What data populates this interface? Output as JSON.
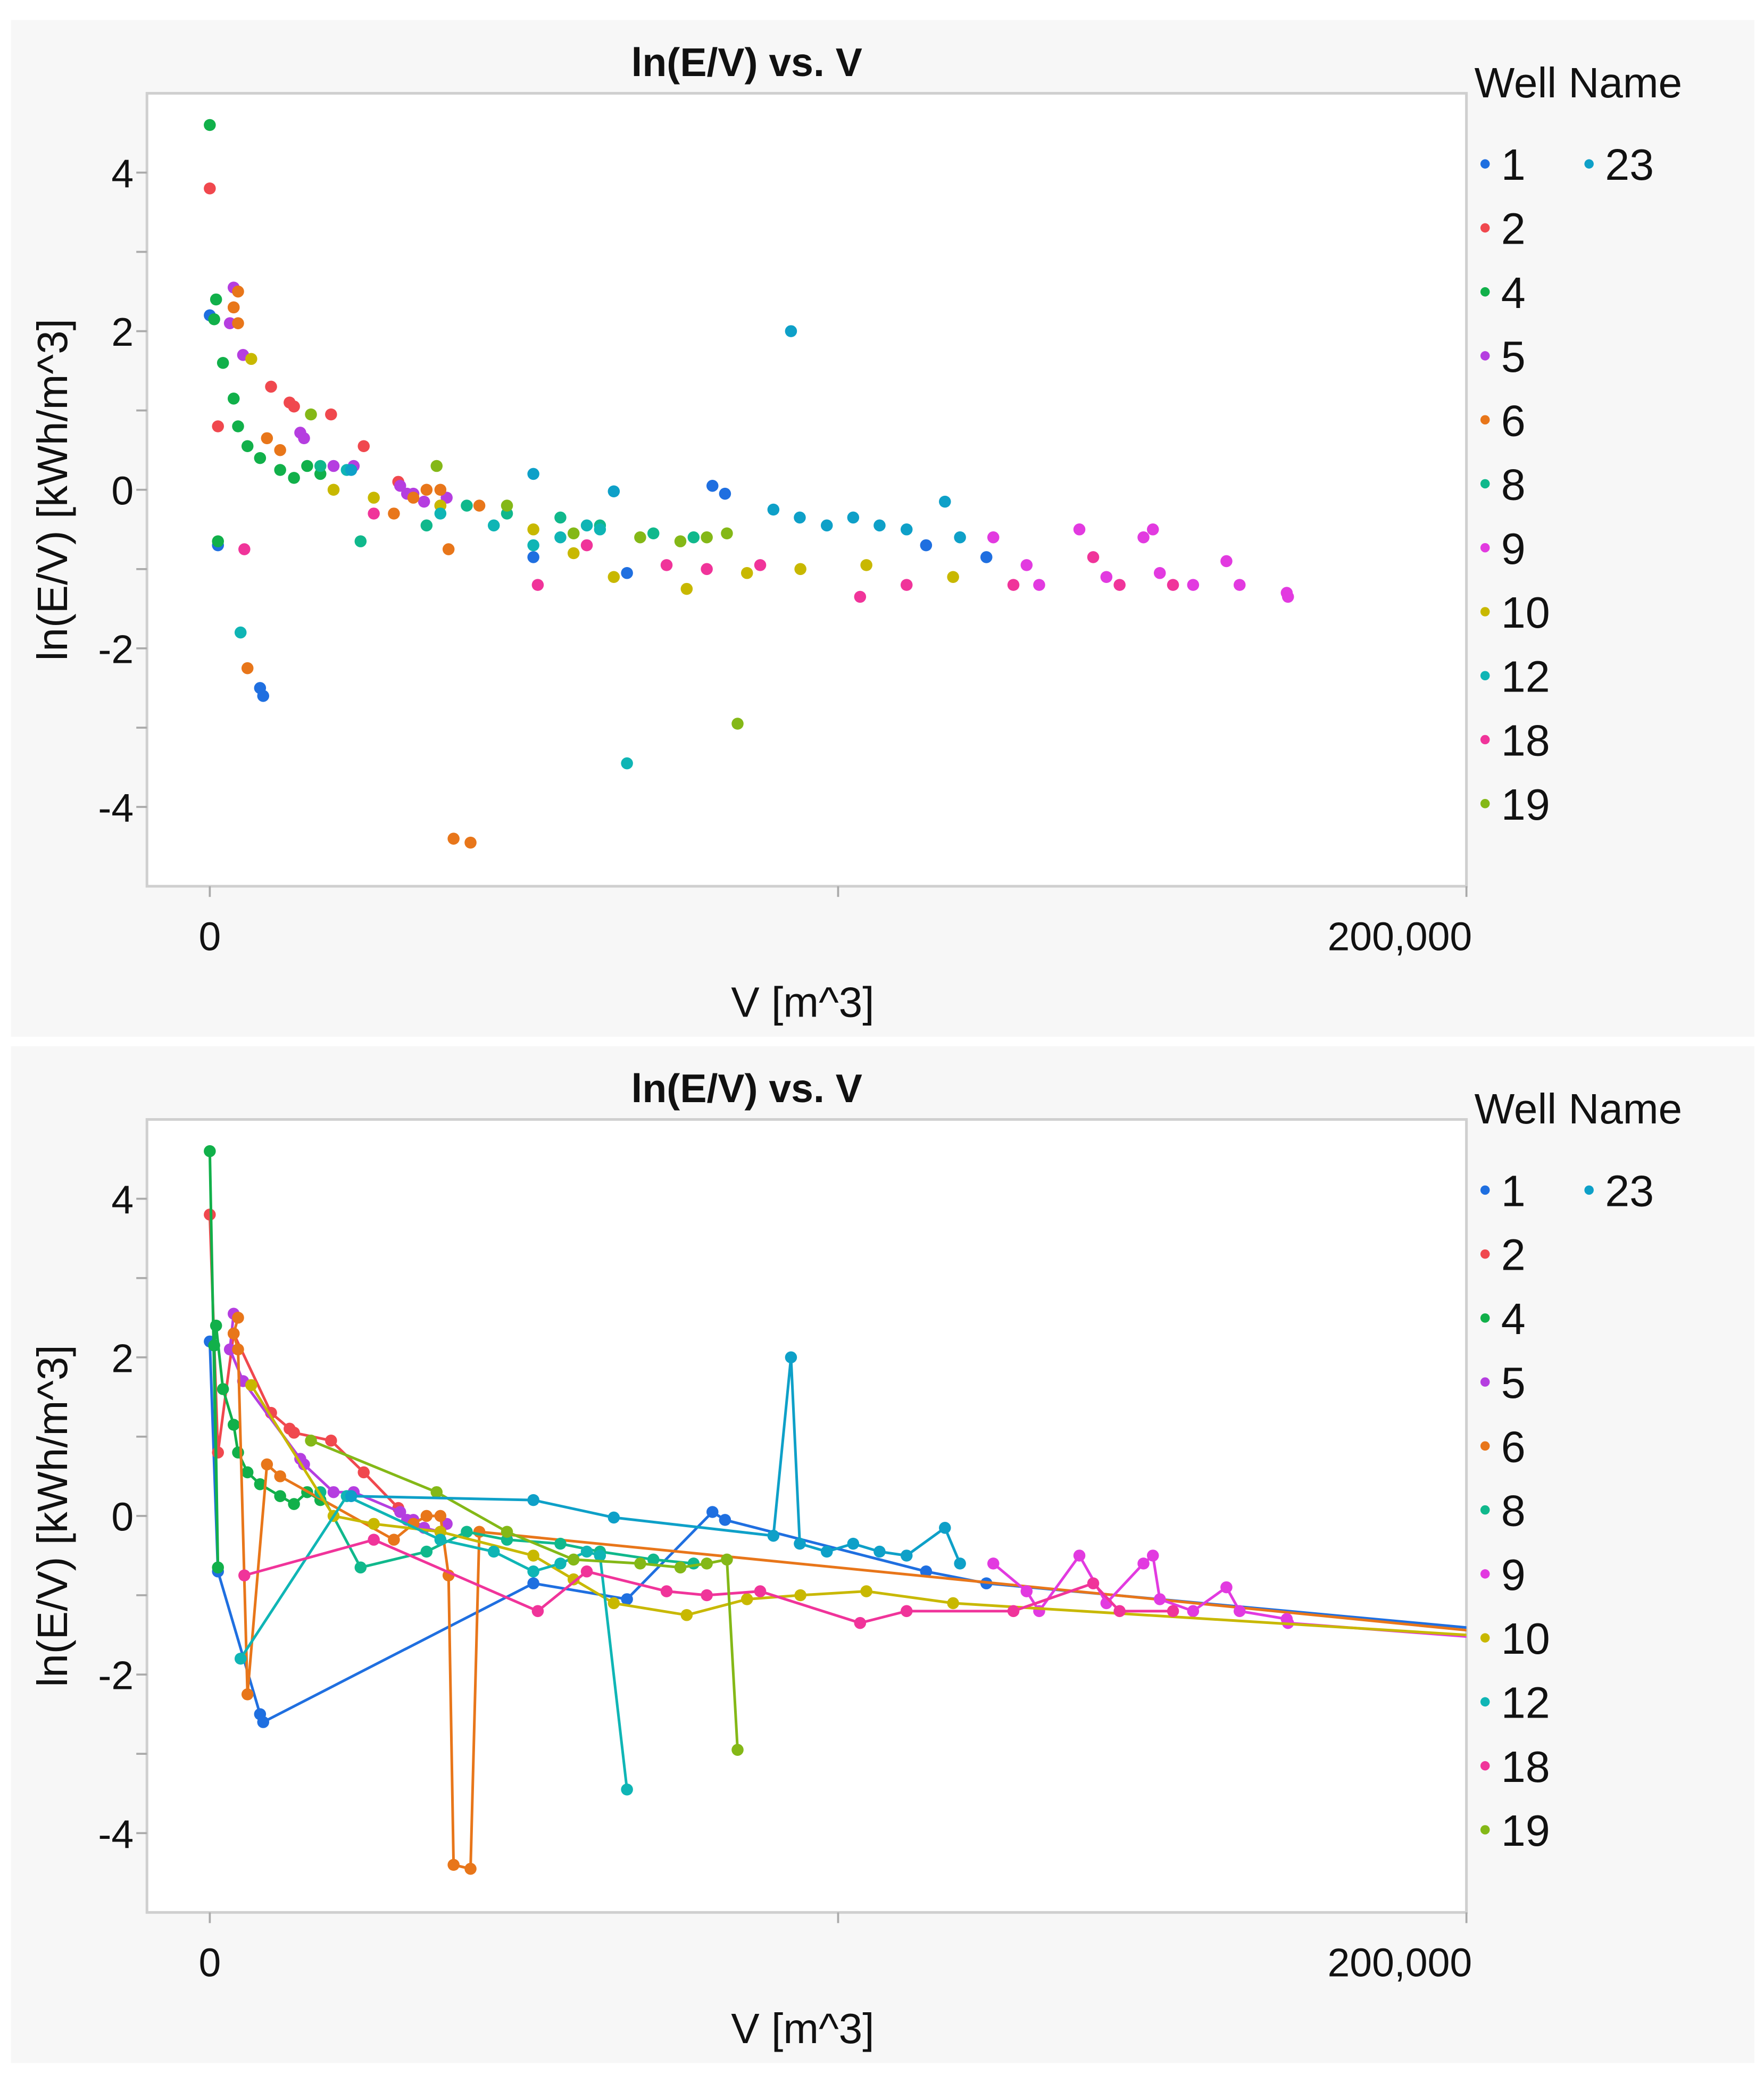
{
  "chart_data": [
    {
      "type": "scatter",
      "title": "ln(E/V) vs. V",
      "xlabel": "V [m^3]",
      "ylabel": "ln(E/V) [kWh/m^3]",
      "xlim": [
        -10000,
        200000
      ],
      "ylim": [
        -5,
        5
      ],
      "x_ticks": [
        {
          "value": 0,
          "label": "0"
        },
        {
          "value": 100000,
          "label": ""
        },
        {
          "value": 200000,
          "label": "200,000"
        }
      ],
      "y_ticks": [
        {
          "value": 4,
          "label": "4"
        },
        {
          "value": 3,
          "label": ""
        },
        {
          "value": 2,
          "label": "2"
        },
        {
          "value": 1,
          "label": ""
        },
        {
          "value": 0,
          "label": "0"
        },
        {
          "value": -1,
          "label": ""
        },
        {
          "value": -2,
          "label": "-2"
        },
        {
          "value": -3,
          "label": ""
        },
        {
          "value": -4,
          "label": "-4"
        }
      ],
      "connect_points": false,
      "legend": {
        "title": "Well Name",
        "placement": "right"
      }
    },
    {
      "type": "line",
      "title": "ln(E/V) vs. V",
      "xlabel": "V [m^3]",
      "ylabel": "ln(E/V) [kWh/m^3]",
      "xlim": [
        -10000,
        200000
      ],
      "ylim": [
        -5,
        5
      ],
      "x_ticks": [
        {
          "value": 0,
          "label": "0"
        },
        {
          "value": 100000,
          "label": ""
        },
        {
          "value": 200000,
          "label": "200,000"
        }
      ],
      "y_ticks": [
        {
          "value": 4,
          "label": "4"
        },
        {
          "value": 3,
          "label": ""
        },
        {
          "value": 2,
          "label": "2"
        },
        {
          "value": 1,
          "label": ""
        },
        {
          "value": 0,
          "label": "0"
        },
        {
          "value": -1,
          "label": ""
        },
        {
          "value": -2,
          "label": "-2"
        },
        {
          "value": -3,
          "label": ""
        },
        {
          "value": -4,
          "label": "-4"
        }
      ],
      "connect_points": true,
      "legend": {
        "title": "Well Name",
        "placement": "right"
      }
    }
  ],
  "series": [
    {
      "name": "1",
      "color": "#1f6fe0",
      "tail": [
        210000,
        -1.48
      ],
      "points": [
        [
          0,
          2.2
        ],
        [
          1300,
          -0.7
        ],
        [
          8000,
          -2.5
        ],
        [
          8500,
          -2.6
        ],
        [
          51500,
          -0.85
        ],
        [
          66400,
          -1.05
        ],
        [
          80000,
          0.05
        ],
        [
          82000,
          -0.05
        ],
        [
          114000,
          -0.7
        ],
        [
          123600,
          -0.85
        ]
      ]
    },
    {
      "name": "2",
      "color": "#f0484e",
      "tail": null,
      "points": [
        [
          0,
          3.8
        ],
        [
          1300,
          0.8
        ],
        [
          3800,
          2.3
        ],
        [
          9750,
          1.3
        ],
        [
          12700,
          1.1
        ],
        [
          13400,
          1.05
        ],
        [
          19300,
          0.95
        ],
        [
          24500,
          0.55
        ],
        [
          30000,
          0.1
        ]
      ]
    },
    {
      "name": "4",
      "color": "#11b04a",
      "tail": null,
      "points": [
        [
          0,
          4.6
        ],
        [
          1300,
          -0.65
        ],
        [
          700,
          2.15
        ],
        [
          1000,
          2.4
        ],
        [
          2100,
          1.6
        ],
        [
          3800,
          1.15
        ],
        [
          4500,
          0.8
        ],
        [
          6000,
          0.55
        ],
        [
          8000,
          0.4
        ],
        [
          11200,
          0.25
        ],
        [
          13400,
          0.15
        ],
        [
          15500,
          0.3
        ],
        [
          17600,
          0.2
        ]
      ]
    },
    {
      "name": "5",
      "color": "#b53ee0",
      "tail": null,
      "points": [
        [
          3800,
          2.55
        ],
        [
          3200,
          2.1
        ],
        [
          5300,
          1.7
        ],
        [
          14400,
          0.72
        ],
        [
          15000,
          0.65
        ],
        [
          19700,
          0.3
        ],
        [
          22900,
          0.3
        ],
        [
          30300,
          0.05
        ],
        [
          31400,
          -0.05
        ],
        [
          32400,
          -0.05
        ],
        [
          34100,
          -0.15
        ],
        [
          36700,
          -0.2
        ],
        [
          37700,
          -0.1
        ]
      ]
    },
    {
      "name": "6",
      "color": "#e8761a",
      "tail": [
        210000,
        -1.52
      ],
      "points": [
        [
          4500,
          2.5
        ],
        [
          3800,
          2.3
        ],
        [
          4500,
          2.1
        ],
        [
          6000,
          -2.25
        ],
        [
          9100,
          0.65
        ],
        [
          11200,
          0.5
        ],
        [
          29300,
          -0.3
        ],
        [
          32400,
          -0.1
        ],
        [
          34500,
          0
        ],
        [
          36700,
          0
        ],
        [
          38000,
          -0.75
        ],
        [
          38800,
          -4.4
        ],
        [
          41500,
          -4.45
        ],
        [
          42900,
          -0.2
        ]
      ]
    },
    {
      "name": "8",
      "color": "#10b88c",
      "tail": null,
      "points": [
        [
          17600,
          0.3
        ],
        [
          24000,
          -0.65
        ],
        [
          34500,
          -0.45
        ],
        [
          40900,
          -0.2
        ],
        [
          47300,
          -0.3
        ],
        [
          55800,
          -0.35
        ],
        [
          62100,
          -0.45
        ],
        [
          70600,
          -0.55
        ],
        [
          77000,
          -0.6
        ]
      ]
    },
    {
      "name": "9",
      "color": "#e23ae0",
      "tail": [
        210000,
        -1.58
      ],
      "points": [
        [
          124700,
          -0.6
        ],
        [
          130000,
          -0.95
        ],
        [
          132000,
          -1.2
        ],
        [
          138400,
          -0.5
        ],
        [
          142700,
          -1.1
        ],
        [
          148600,
          -0.6
        ],
        [
          150100,
          -0.5
        ],
        [
          151200,
          -1.05
        ],
        [
          156500,
          -1.2
        ],
        [
          161800,
          -0.9
        ],
        [
          163900,
          -1.2
        ],
        [
          171400,
          -1.3
        ],
        [
          171600,
          -1.35
        ]
      ]
    },
    {
      "name": "10",
      "color": "#c8b800",
      "tail": [
        210000,
        -1.55
      ],
      "points": [
        [
          6600,
          1.65
        ],
        [
          19700,
          0
        ],
        [
          26100,
          -0.1
        ],
        [
          36700,
          -0.2
        ],
        [
          51500,
          -0.5
        ],
        [
          57900,
          -0.8
        ],
        [
          64300,
          -1.1
        ],
        [
          75900,
          -1.25
        ],
        [
          85500,
          -1.05
        ],
        [
          94000,
          -1.0
        ],
        [
          104500,
          -0.95
        ],
        [
          118300,
          -1.1
        ]
      ]
    },
    {
      "name": "12",
      "color": "#0fb5b5",
      "tail": null,
      "points": [
        [
          4900,
          -1.8
        ],
        [
          21800,
          0.25
        ],
        [
          36700,
          -0.3
        ],
        [
          45200,
          -0.45
        ],
        [
          51500,
          -0.7
        ],
        [
          55800,
          -0.6
        ],
        [
          60000,
          -0.45
        ],
        [
          62100,
          -0.5
        ],
        [
          66400,
          -3.45
        ]
      ]
    },
    {
      "name": "18",
      "color": "#f0349a",
      "tail": null,
      "points": [
        [
          5500,
          -0.75
        ],
        [
          26100,
          -0.3
        ],
        [
          52200,
          -1.2
        ],
        [
          60000,
          -0.7
        ],
        [
          72700,
          -0.95
        ],
        [
          79100,
          -1.0
        ],
        [
          87600,
          -0.95
        ],
        [
          103500,
          -1.35
        ],
        [
          110900,
          -1.2
        ],
        [
          127900,
          -1.2
        ],
        [
          140600,
          -0.85
        ],
        [
          144800,
          -1.2
        ],
        [
          153300,
          -1.2
        ]
      ]
    },
    {
      "name": "19",
      "color": "#84b817",
      "tail": null,
      "points": [
        [
          16100,
          0.95
        ],
        [
          36100,
          0.3
        ],
        [
          47300,
          -0.2
        ],
        [
          57900,
          -0.55
        ],
        [
          68500,
          -0.6
        ],
        [
          74900,
          -0.65
        ],
        [
          79100,
          -0.6
        ],
        [
          82300,
          -0.55
        ],
        [
          84000,
          -2.95
        ]
      ]
    },
    {
      "name": "23",
      "color": "#0ea0c8",
      "tail": null,
      "points": [
        [
          22500,
          0.25
        ],
        [
          51500,
          0.2
        ],
        [
          64300,
          -0.02
        ],
        [
          89700,
          -0.25
        ],
        [
          92500,
          2.0
        ],
        [
          93900,
          -0.35
        ],
        [
          98200,
          -0.45
        ],
        [
          102400,
          -0.35
        ],
        [
          106600,
          -0.45
        ],
        [
          110900,
          -0.5
        ],
        [
          117000,
          -0.15
        ],
        [
          119400,
          -0.6
        ]
      ]
    }
  ]
}
